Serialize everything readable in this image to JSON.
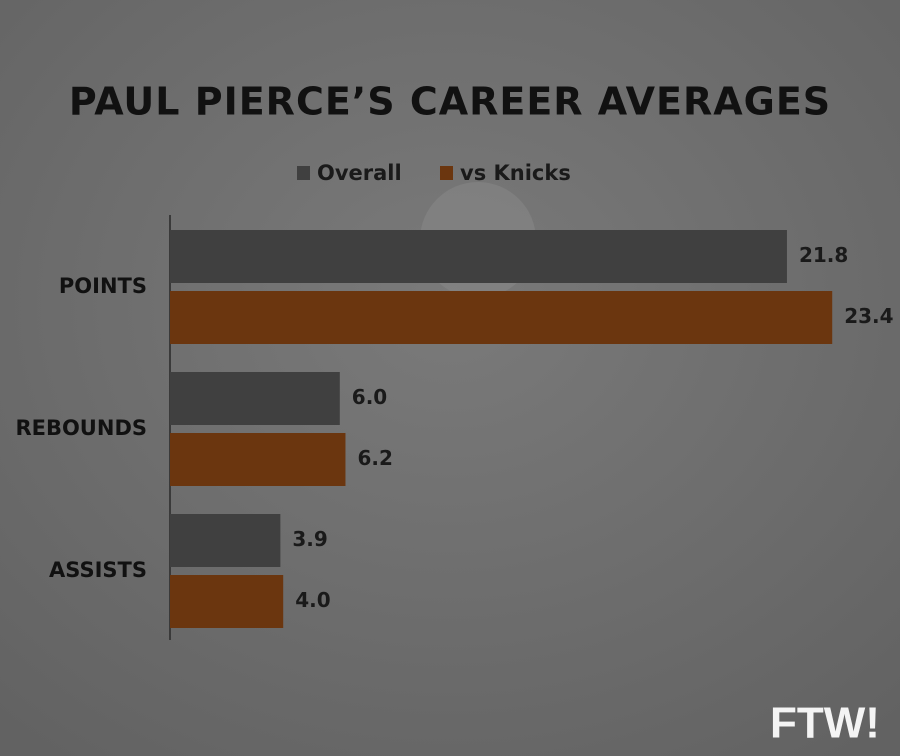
{
  "chart_data": {
    "type": "bar",
    "orientation": "horizontal",
    "title": "PAUL PIERCE’S CAREER AVERAGES",
    "categories": [
      "POINTS",
      "REBOUNDS",
      "ASSISTS"
    ],
    "series": [
      {
        "name": "Overall",
        "color": "#404040",
        "values": [
          21.8,
          6.0,
          3.9
        ],
        "value_labels": [
          "21.8",
          "6.0",
          "3.9"
        ]
      },
      {
        "name": "vs Knicks",
        "color": "#6b360f",
        "values": [
          23.4,
          6.2,
          4.0
        ],
        "value_labels": [
          "23.4",
          "6.2",
          "4.0"
        ]
      }
    ],
    "legend": "top",
    "logo": "FTW!"
  }
}
